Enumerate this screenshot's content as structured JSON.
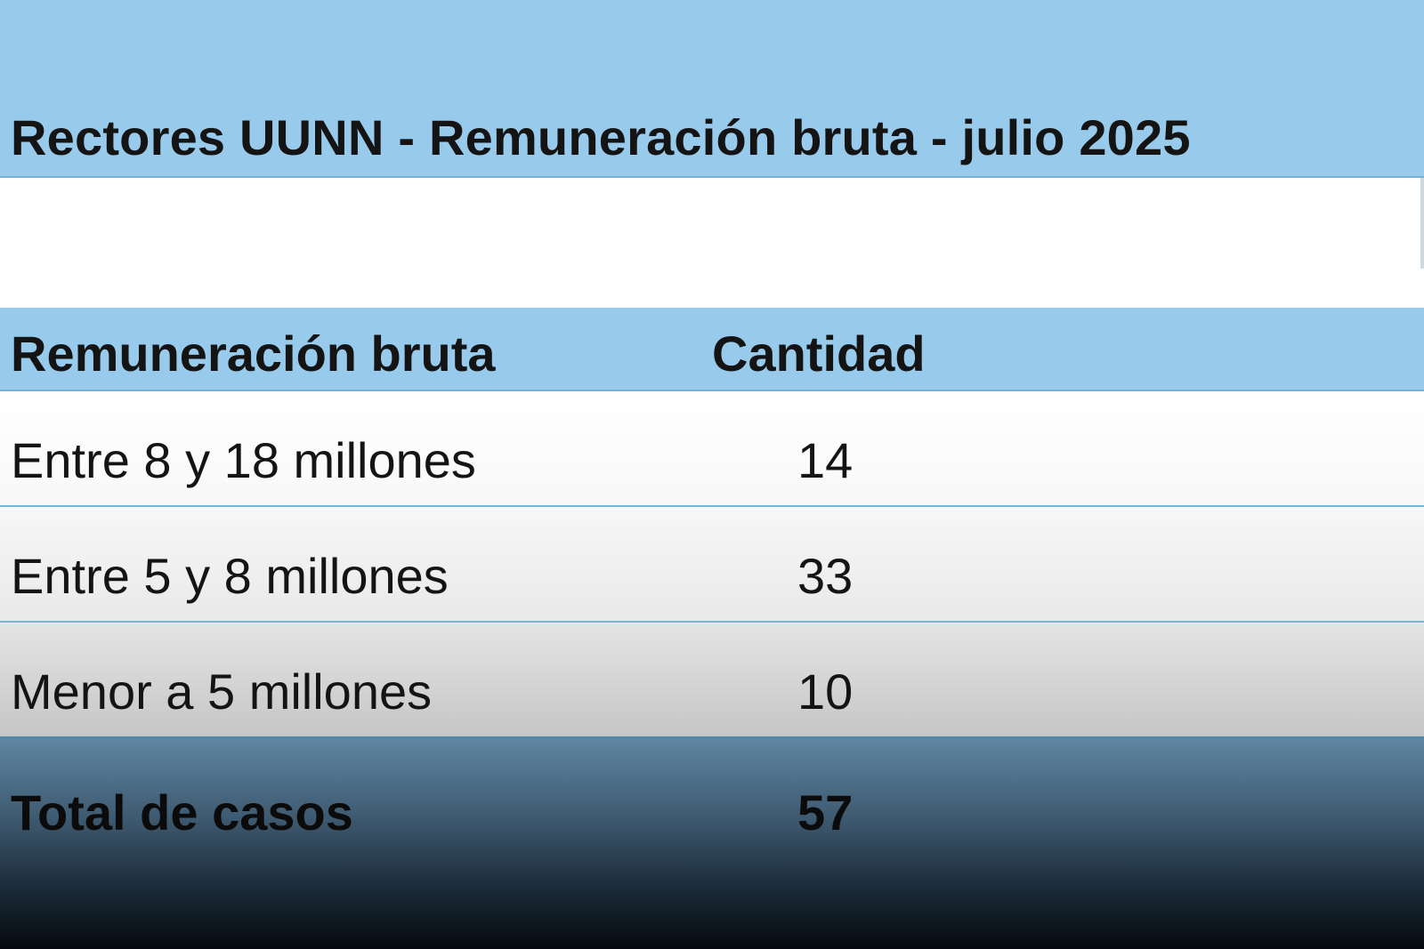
{
  "title": "Rectores UUNN - Remuneración bruta - julio 2025",
  "table": {
    "headers": {
      "label": "Remuneración bruta",
      "value": "Cantidad"
    },
    "rows": [
      {
        "label": "Entre 8 y 18 millones",
        "value": "14"
      },
      {
        "label": "Entre 5 y 8 millones",
        "value": "33"
      },
      {
        "label": "Menor a 5 millones",
        "value": "10"
      }
    ],
    "total": {
      "label": "Total de casos",
      "value": "57"
    }
  }
}
